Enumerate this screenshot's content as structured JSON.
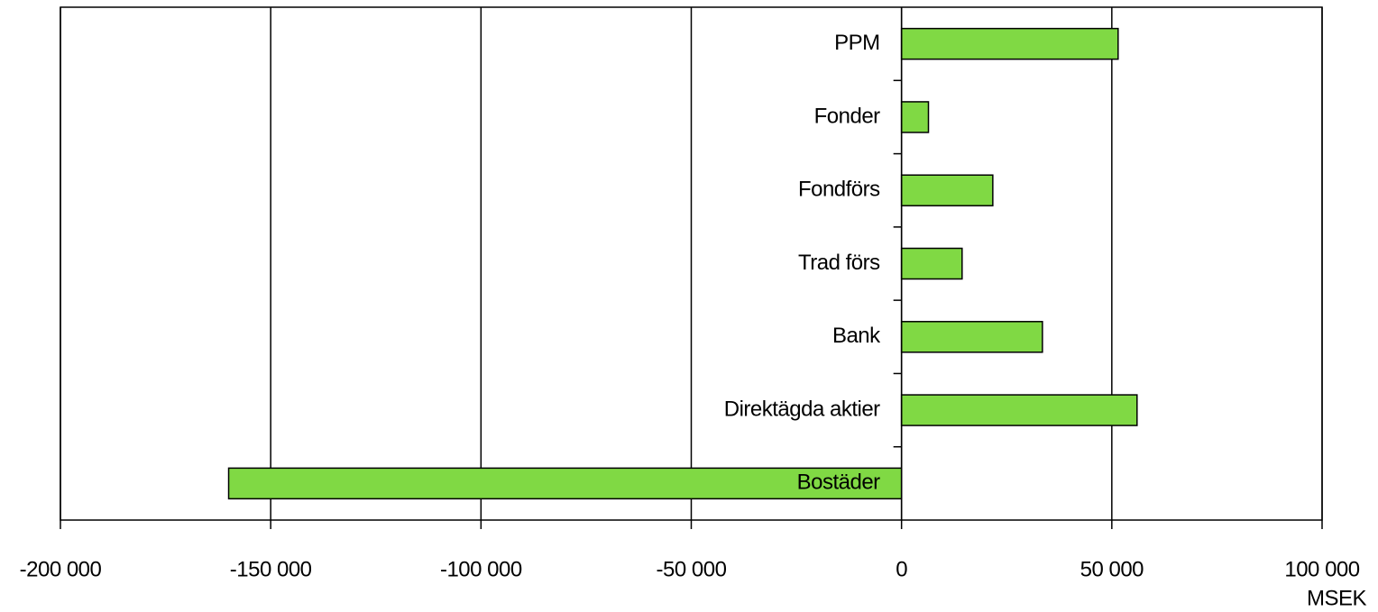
{
  "chart_data": {
    "type": "hbar",
    "categories": [
      "PPM",
      "Fonder",
      "Fondförs",
      "Trad förs",
      "Bank",
      "Direktägda aktier",
      "Bostäder"
    ],
    "values": [
      51500,
      6400,
      21700,
      14400,
      33500,
      56000,
      -160000
    ],
    "color": "#80d944",
    "xlabel": "MSEK",
    "xlim": [
      -200000,
      100000
    ],
    "xticks": [
      {
        "value": -200000,
        "label": "-200 000"
      },
      {
        "value": -150000,
        "label": "-150 000"
      },
      {
        "value": -100000,
        "label": "-100 000"
      },
      {
        "value": -50000,
        "label": "-50 000"
      },
      0,
      {
        "value": 50000,
        "label": "50 000"
      },
      {
        "value": 100000,
        "label": "100 000"
      }
    ],
    "grid": true
  }
}
